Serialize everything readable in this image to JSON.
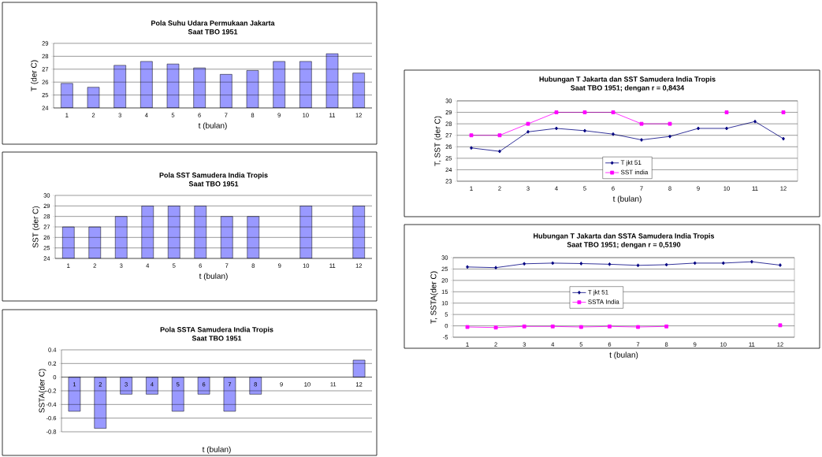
{
  "chart_data": [
    {
      "type": "bar",
      "title": "Pola Suhu Udara Permukaan Jakarta",
      "subtitle": "Saat TBO 1951",
      "xlabel": "t (bulan)",
      "ylabel": "T (der C)",
      "categories": [
        "1",
        "2",
        "3",
        "4",
        "5",
        "6",
        "7",
        "8",
        "9",
        "10",
        "11",
        "12"
      ],
      "values": [
        25.9,
        25.6,
        27.3,
        27.6,
        27.4,
        27.1,
        26.6,
        26.9,
        27.6,
        27.6,
        28.2,
        26.7
      ],
      "color": "#9999ff",
      "ylim": [
        24,
        29
      ],
      "yticks": [
        24,
        25,
        26,
        27,
        28,
        29
      ],
      "grid": "y"
    },
    {
      "type": "bar",
      "title": "Pola SST Samudera India Tropis",
      "subtitle": "Saat TBO 1951",
      "xlabel": "t (bulan)",
      "ylabel": "SST (der C)",
      "categories": [
        "1",
        "2",
        "3",
        "4",
        "5",
        "6",
        "7",
        "8",
        "9",
        "10",
        "11",
        "12"
      ],
      "values": [
        27,
        27,
        28,
        29,
        29,
        29,
        28,
        28,
        null,
        29,
        null,
        29
      ],
      "color": "#9999ff",
      "ylim": [
        24,
        30
      ],
      "yticks": [
        24,
        25,
        26,
        27,
        28,
        29,
        30
      ],
      "grid": "y"
    },
    {
      "type": "bar",
      "title": "Pola SSTA Samudera India Tropis",
      "subtitle": "Saat TBO 1951",
      "xlabel": "t (bulan)",
      "ylabel": "SSTA(der C)",
      "categories": [
        "1",
        "2",
        "3",
        "4",
        "5",
        "6",
        "7",
        "8",
        "9",
        "10",
        "11",
        "12"
      ],
      "values": [
        -0.5,
        -0.75,
        -0.25,
        -0.25,
        -0.5,
        -0.25,
        -0.5,
        -0.25,
        null,
        null,
        null,
        0.25
      ],
      "color": "#9999ff",
      "ylim": [
        -0.8,
        0.4
      ],
      "yticks": [
        -0.8,
        -0.6,
        -0.4,
        -0.2,
        0,
        0.2,
        0.4
      ],
      "grid": "y"
    },
    {
      "type": "line",
      "title": "Hubungan T Jakarta dan SST Samudera India Tropis",
      "subtitle": "Saat TBO 1951; dengan r = 0,8434",
      "xlabel": "t (bulan)",
      "ylabel": "T, SST (der C)",
      "categories": [
        "1",
        "2",
        "3",
        "4",
        "5",
        "6",
        "7",
        "8",
        "9",
        "10",
        "11",
        "12"
      ],
      "series": [
        {
          "name": "T jkt 51",
          "color": "#000080",
          "marker": "diamond",
          "values": [
            25.9,
            25.6,
            27.3,
            27.6,
            27.4,
            27.1,
            26.6,
            26.9,
            27.6,
            27.6,
            28.2,
            26.7
          ]
        },
        {
          "name": "SST india",
          "color": "#ff00ff",
          "marker": "square",
          "values": [
            27,
            27,
            28,
            29,
            29,
            29,
            28,
            28,
            null,
            29,
            null,
            29
          ]
        }
      ],
      "ylim": [
        23,
        30
      ],
      "yticks": [
        23,
        24,
        25,
        26,
        27,
        28,
        29,
        30
      ],
      "grid": "y",
      "legend": "bottom"
    },
    {
      "type": "line",
      "title": "Hubungan T Jakarta dan SSTA Samudera India Tropis",
      "subtitle": "Saat TBO 1951; dengan r = 0,5190",
      "xlabel": "t (bulan)",
      "ylabel": "T, SSTA(der C)",
      "categories": [
        "1",
        "2",
        "3",
        "4",
        "5",
        "6",
        "7",
        "8",
        "9",
        "10",
        "11",
        "12"
      ],
      "series": [
        {
          "name": "T jkt 51",
          "color": "#000080",
          "marker": "diamond",
          "values": [
            25.9,
            25.6,
            27.3,
            27.6,
            27.4,
            27.1,
            26.6,
            26.9,
            27.6,
            27.6,
            28.2,
            26.7
          ]
        },
        {
          "name": "SSTA India",
          "color": "#ff00ff",
          "marker": "square",
          "values": [
            -0.5,
            -0.75,
            -0.25,
            -0.25,
            -0.5,
            -0.25,
            -0.5,
            -0.25,
            null,
            null,
            null,
            0.25
          ]
        }
      ],
      "ylim": [
        -5,
        30
      ],
      "yticks": [
        -5,
        0,
        5,
        10,
        15,
        20,
        25,
        30
      ],
      "grid": "y",
      "legend": "center"
    }
  ]
}
